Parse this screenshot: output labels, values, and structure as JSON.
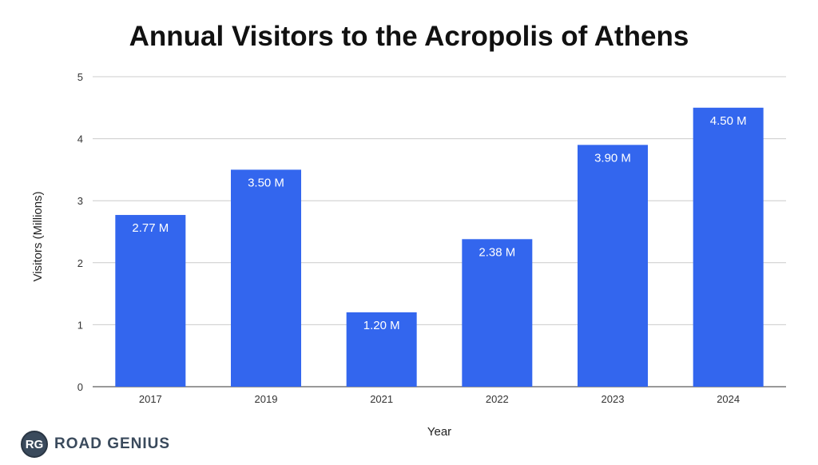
{
  "chart_data": {
    "type": "bar",
    "title": "Annual Visitors to the Acropolis of Athens",
    "xlabel": "Year",
    "ylabel": "Visitors (Millions)",
    "categories": [
      "2017",
      "2019",
      "2021",
      "2022",
      "2023",
      "2024"
    ],
    "values": [
      2.77,
      3.5,
      1.2,
      2.38,
      3.9,
      4.5
    ],
    "data_labels": [
      "2.77 M",
      "3.50 M",
      "1.20 M",
      "2.38 M",
      "3.90 M",
      "4.50 M"
    ],
    "ylim": [
      0,
      5
    ],
    "yticks": [
      "0",
      "1",
      "2",
      "3",
      "4",
      "5"
    ],
    "grid": true,
    "bar_color": "#3366ee"
  },
  "logo": {
    "badge": "RG",
    "text": "ROAD GENIUS"
  }
}
